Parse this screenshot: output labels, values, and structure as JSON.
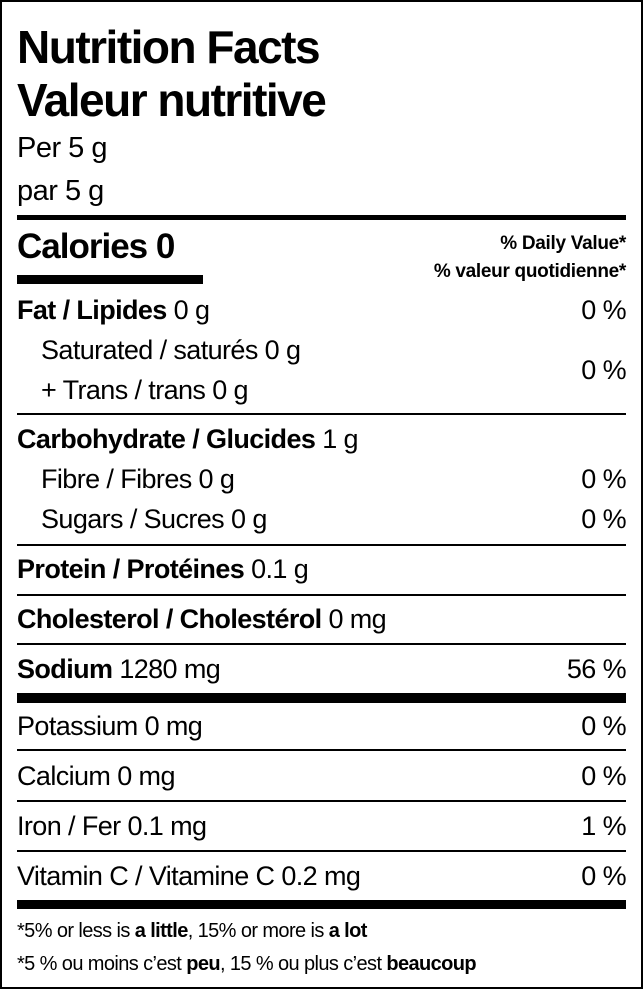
{
  "title_en": "Nutrition Facts",
  "title_fr": "Valeur nutritive",
  "serving_en": "Per 5 g",
  "serving_fr": "par 5 g",
  "calories": {
    "label": "Calories",
    "value": "0"
  },
  "dv_header_en": "% Daily Value*",
  "dv_header_fr": "% valeur quotidienne*",
  "fat": {
    "label": "Fat / Lipides",
    "amount": "0 g",
    "dv": "0 %"
  },
  "saturated": {
    "label": "Saturated / saturés",
    "amount": "0 g"
  },
  "trans": {
    "label": "+ Trans / trans",
    "amount": "0 g"
  },
  "sat_trans_dv": "0 %",
  "carbohydrate": {
    "label": "Carbohydrate / Glucides",
    "amount": "1 g"
  },
  "fibre": {
    "label": "Fibre / Fibres",
    "amount": "0 g",
    "dv": "0 %"
  },
  "sugars": {
    "label": "Sugars / Sucres",
    "amount": "0 g",
    "dv": "0 %"
  },
  "protein": {
    "label": "Protein / Protéines",
    "amount": "0.1 g"
  },
  "cholesterol": {
    "label": "Cholesterol / Cholestérol",
    "amount": "0 mg"
  },
  "sodium": {
    "label": "Sodium",
    "amount": "1280 mg",
    "dv": "56 %"
  },
  "potassium": {
    "label": "Potassium",
    "amount": "0 mg",
    "dv": "0 %"
  },
  "calcium": {
    "label": "Calcium",
    "amount": "0 mg",
    "dv": "0 %"
  },
  "iron": {
    "label": "Iron / Fer",
    "amount": "0.1 mg",
    "dv": "1 %"
  },
  "vitamin_c": {
    "label": "Vitamin C / Vitamine C",
    "amount": "0.2 mg",
    "dv": "0 %"
  },
  "footnote_en": {
    "a": "*5% or less is ",
    "b": "a little",
    ",c": "",
    "c": ", 15% or more is ",
    "d": "a lot"
  },
  "footnote_fr": {
    "a": "*5 % ou moins c’est ",
    "b": "peu",
    "c": ", 15 % ou plus c’est ",
    "d": "beaucoup"
  }
}
